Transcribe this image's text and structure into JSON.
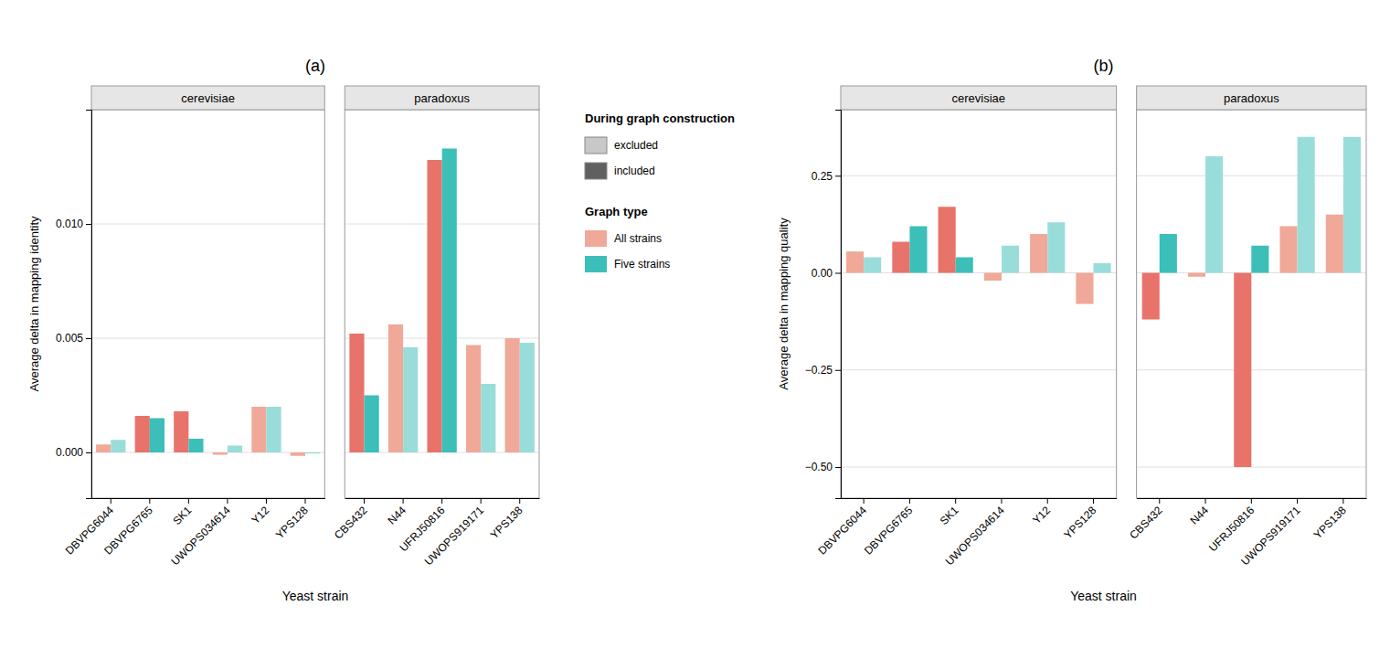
{
  "chart_data": [
    {
      "type": "bar",
      "title": "(a)",
      "xlabel": "Yeast strain",
      "ylabel": "Average delta in mapping identity",
      "facets": [
        {
          "title": "cerevisiae",
          "categories": [
            "DBVPG6044",
            "DBVPG6765",
            "SK1",
            "UWOPS034614",
            "Y12",
            "YPS128"
          ]
        },
        {
          "title": "paradoxus",
          "categories": [
            "CBS432",
            "N44",
            "UFRJ50816",
            "UWOPS919171",
            "YPS138"
          ]
        }
      ],
      "series": [
        {
          "name": "All strains",
          "color": "#F0A898",
          "colors": [
            "#F0A898",
            "#E8736A",
            "#E8736A",
            "#F0A898",
            "#F0A898",
            "#F0A898",
            "#E8736A",
            "#F0A898",
            "#E8736A",
            "#F0A898",
            "#F0A898"
          ],
          "values": [
            0.00035,
            0.0016,
            0.0018,
            -0.0001,
            0.002,
            -0.00015,
            0.0052,
            0.0056,
            0.0128,
            0.0047,
            0.005
          ]
        },
        {
          "name": "Five strains",
          "color": "#3CBFB8",
          "colors": [
            "#99DDDA",
            "#3CBFB8",
            "#3CBFB8",
            "#99DDDA",
            "#99DDDA",
            "#99DDDA",
            "#3CBFB8",
            "#99DDDA",
            "#3CBFB8",
            "#99DDDA",
            "#99DDDA"
          ],
          "values": [
            0.00055,
            0.0015,
            0.0006,
            0.0003,
            0.002,
            -5e-05,
            0.0025,
            0.0046,
            0.0133,
            0.003,
            0.0048
          ]
        }
      ],
      "ylim": [
        -0.002,
        0.015
      ],
      "yticks": [
        {
          "value": 0,
          "label": "0.000"
        },
        0.005,
        {
          "value": 0.01,
          "label": "0.010"
        }
      ],
      "grid": true,
      "construction_legend": {
        "title": "During graph construction",
        "entries": [
          {
            "name": "excluded",
            "color": "#C8C8C8"
          },
          {
            "name": "included",
            "color": "#606060"
          }
        ]
      },
      "legend_title": "Graph type"
    },
    {
      "type": "bar",
      "title": "(b)",
      "xlabel": "Yeast strain",
      "ylabel": "Average delta in mapping quality",
      "facets": [
        {
          "title": "cerevisiae",
          "categories": [
            "DBVPG6044",
            "DBVPG6765",
            "SK1",
            "UWOPS034614",
            "Y12",
            "YPS128"
          ]
        },
        {
          "title": "paradoxus",
          "categories": [
            "CBS432",
            "N44",
            "UFRJ50816",
            "UWOPS919171",
            "YPS138"
          ]
        }
      ],
      "series": [
        {
          "colors": [
            "#F0A898",
            "#E8736A",
            "#E8736A",
            "#F0A898",
            "#F0A898",
            "#F0A898",
            "#E8736A",
            "#F0A898",
            "#E8736A",
            "#F0A898",
            "#F0A898"
          ],
          "values": [
            0.055,
            0.08,
            0.17,
            -0.02,
            0.1,
            -0.08,
            -0.12,
            -0.01,
            -0.5,
            0.12,
            0.15
          ]
        },
        {
          "colors": [
            "#99DDDA",
            "#3CBFB8",
            "#3CBFB8",
            "#99DDDA",
            "#99DDDA",
            "#99DDDA",
            "#3CBFB8",
            "#99DDDA",
            "#3CBFB8",
            "#99DDDA",
            "#99DDDA"
          ],
          "values": [
            0.04,
            0.12,
            0.04,
            0.07,
            0.13,
            0.025,
            0.1,
            0.3,
            0.07,
            0.35,
            0.35
          ]
        }
      ],
      "ylim": [
        -0.58,
        0.42
      ],
      "yticks": [
        {
          "value": -0.5,
          "label": "−0.50"
        },
        {
          "value": -0.25,
          "label": "−0.25"
        },
        {
          "value": 0,
          "label": "0.00"
        },
        0.25
      ],
      "grid": true
    }
  ]
}
